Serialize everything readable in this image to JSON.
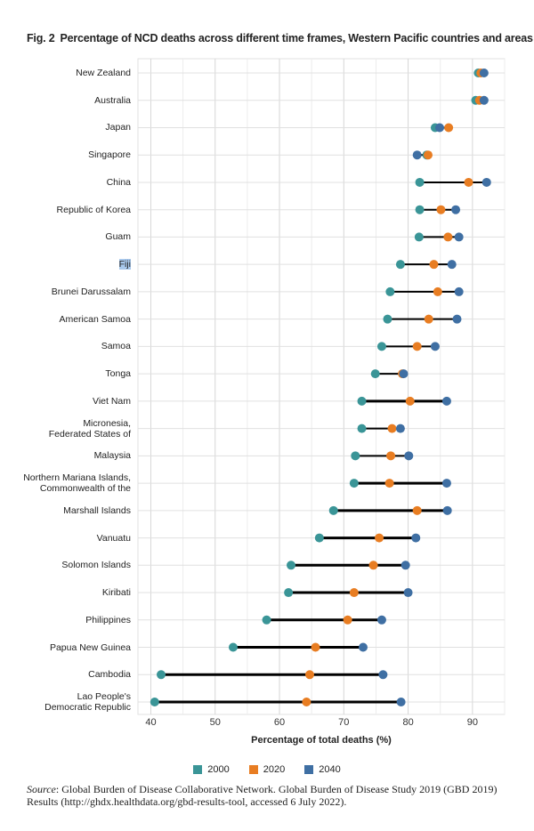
{
  "title": {
    "fig": "Fig. 2",
    "text": "Percentage of NCD deaths across different time frames, Western Pacific countries and areas"
  },
  "colors": {
    "2000": "#3a9597",
    "2020": "#e87d22",
    "2040": "#3f6fa3",
    "line": "#000000",
    "grid": "#d9d9d9"
  },
  "legend": [
    {
      "label": "2000",
      "key": "2000"
    },
    {
      "label": "2020",
      "key": "2020"
    },
    {
      "label": "2040",
      "key": "2040"
    }
  ],
  "source": {
    "label": "Source",
    "text": ": Global Burden of Disease Collaborative Network. Global Burden of Disease Study 2019 (GBD 2019) Results (http://ghdx.healthdata.org/gbd-results-tool, accessed 6 July 2022)."
  },
  "highlighted_label": "Fiji",
  "chart_data": {
    "type": "dumbbell",
    "xlabel": "Percentage of total deaths (%)",
    "xlim": [
      38,
      95
    ],
    "xticks": [
      40,
      50,
      60,
      70,
      80,
      90
    ],
    "grid": true,
    "legend_position": "bottom",
    "series_names": [
      "2000",
      "2020",
      "2040"
    ],
    "rows": [
      {
        "country": "New Zealand",
        "v2000": 90.9,
        "v2020": 91.3,
        "v2040": 91.8
      },
      {
        "country": "Australia",
        "v2000": 90.5,
        "v2020": 91.1,
        "v2040": 91.8
      },
      {
        "country": "Japan",
        "v2000": 84.2,
        "v2020": 86.3,
        "v2040": 84.9
      },
      {
        "country": "Singapore",
        "v2000": 82.9,
        "v2020": 83.1,
        "v2040": 81.4
      },
      {
        "country": "China",
        "v2000": 81.8,
        "v2020": 89.4,
        "v2040": 92.2
      },
      {
        "country": "Republic of Korea",
        "v2000": 81.8,
        "v2020": 85.1,
        "v2040": 87.4
      },
      {
        "country": "Guam",
        "v2000": 81.7,
        "v2020": 86.2,
        "v2040": 87.9
      },
      {
        "country": "Fiji",
        "v2000": 78.8,
        "v2020": 84.0,
        "v2040": 86.8
      },
      {
        "country": "Brunei Darussalam",
        "v2000": 77.2,
        "v2020": 84.6,
        "v2040": 87.9
      },
      {
        "country": "American Samoa",
        "v2000": 76.8,
        "v2020": 83.2,
        "v2040": 87.6
      },
      {
        "country": "Samoa",
        "v2000": 75.9,
        "v2020": 81.4,
        "v2040": 84.2
      },
      {
        "country": "Tonga",
        "v2000": 74.9,
        "v2020": 79.1,
        "v2040": 79.3
      },
      {
        "country": "Viet Nam",
        "v2000": 72.8,
        "v2020": 80.3,
        "v2040": 86.0
      },
      {
        "country": "Micronesia,\nFederated States of",
        "v2000": 72.8,
        "v2020": 77.5,
        "v2040": 78.8
      },
      {
        "country": "Malaysia",
        "v2000": 71.8,
        "v2020": 77.3,
        "v2040": 80.1
      },
      {
        "country": "Northern Mariana Islands,\nCommonwealth of the",
        "v2000": 71.6,
        "v2020": 77.1,
        "v2040": 86.0
      },
      {
        "country": "Marshall Islands",
        "v2000": 68.4,
        "v2020": 81.4,
        "v2040": 86.1
      },
      {
        "country": "Vanuatu",
        "v2000": 66.2,
        "v2020": 75.5,
        "v2040": 81.2
      },
      {
        "country": "Solomon Islands",
        "v2000": 61.8,
        "v2020": 74.6,
        "v2040": 79.6
      },
      {
        "country": "Kiribati",
        "v2000": 61.4,
        "v2020": 71.6,
        "v2040": 80.0
      },
      {
        "country": "Philippines",
        "v2000": 58.0,
        "v2020": 70.6,
        "v2040": 75.9
      },
      {
        "country": "Papua New Guinea",
        "v2000": 52.8,
        "v2020": 65.6,
        "v2040": 73.0
      },
      {
        "country": "Cambodia",
        "v2000": 41.6,
        "v2020": 64.7,
        "v2040": 76.1
      },
      {
        "country": "Lao People's\nDemocratic Republic",
        "v2000": 40.6,
        "v2020": 64.2,
        "v2040": 78.9
      }
    ]
  }
}
